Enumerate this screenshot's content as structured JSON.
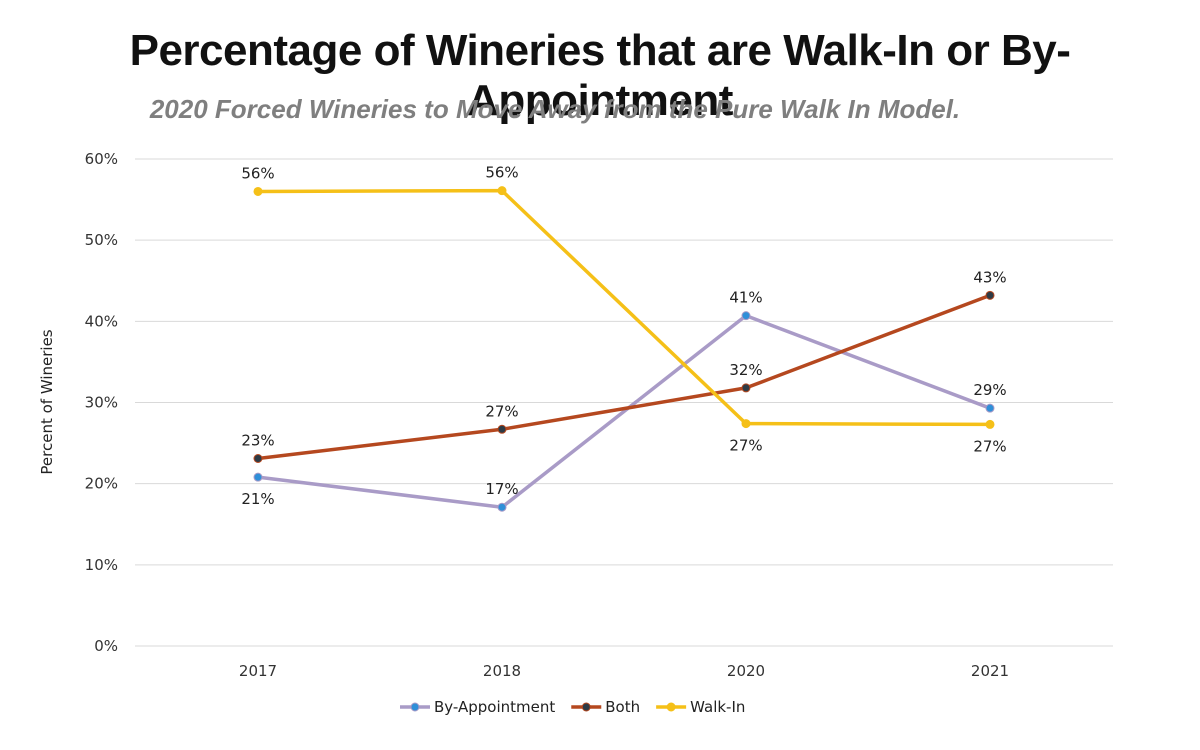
{
  "chart_data": {
    "type": "line",
    "title": "Percentage of Wineries that are Walk-In or By-Appointment",
    "subtitle": "2020 Forced Wineries to Move Away from the Pure Walk In Model.",
    "xlabel": "",
    "ylabel": "Percent of Wineries",
    "categories": [
      "2017",
      "2018",
      "2020",
      "2021"
    ],
    "ylim": [
      0,
      60
    ],
    "yticks": [
      0,
      10,
      20,
      30,
      40,
      50,
      60
    ],
    "ytick_labels": [
      "0%",
      "10%",
      "20%",
      "30%",
      "40%",
      "50%",
      "60%"
    ],
    "grid": true,
    "legend": "bottom",
    "series": [
      {
        "name": "By-Appointment",
        "color": "#a99bc7",
        "marker_color": "#2f8fd8",
        "values": [
          20.8,
          17.1,
          40.7,
          29.3
        ],
        "labels": [
          "21%",
          "17%",
          "41%",
          "29%"
        ],
        "label_pos": [
          "below",
          "above",
          "above",
          "above"
        ]
      },
      {
        "name": "Both",
        "color": "#b5481f",
        "marker_color": "#2d3a45",
        "values": [
          23.1,
          26.7,
          31.8,
          43.2
        ],
        "labels": [
          "23%",
          "27%",
          "32%",
          "43%"
        ],
        "label_pos": [
          "above",
          "above",
          "above",
          "above"
        ]
      },
      {
        "name": "Walk-In",
        "color": "#f5c018",
        "marker_color": "#f5c018",
        "values": [
          56.0,
          56.1,
          27.4,
          27.3
        ],
        "labels": [
          "56%",
          "56%",
          "27%",
          "27%"
        ],
        "label_pos": [
          "above",
          "above",
          "below",
          "below"
        ]
      }
    ]
  }
}
